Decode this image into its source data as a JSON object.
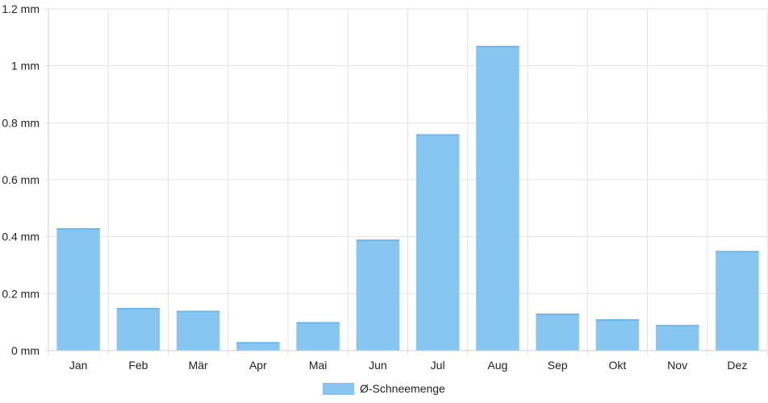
{
  "colors": {
    "bar_fill": "#88c6f2",
    "grid": "#e3e3e3",
    "text": "#222222"
  },
  "chart_data": {
    "type": "bar",
    "categories": [
      "Jan",
      "Feb",
      "Mär",
      "Apr",
      "Mai",
      "Jun",
      "Jul",
      "Aug",
      "Sep",
      "Okt",
      "Nov",
      "Dez"
    ],
    "series": [
      {
        "name": "Ø-Schneemenge",
        "values": [
          0.43,
          0.15,
          0.14,
          0.03,
          0.1,
          0.39,
          0.76,
          1.07,
          0.13,
          0.11,
          0.09,
          0.35
        ]
      }
    ],
    "y_ticks": [
      "0 mm",
      "0.2 mm",
      "0.4 mm",
      "0.6 mm",
      "0.8 mm",
      "1 mm",
      "1.2 mm"
    ],
    "ylim": [
      0,
      1.2
    ],
    "unit": "mm",
    "grid": true,
    "legend_position": "bottom-center",
    "title": "",
    "xlabel": "",
    "ylabel": ""
  }
}
